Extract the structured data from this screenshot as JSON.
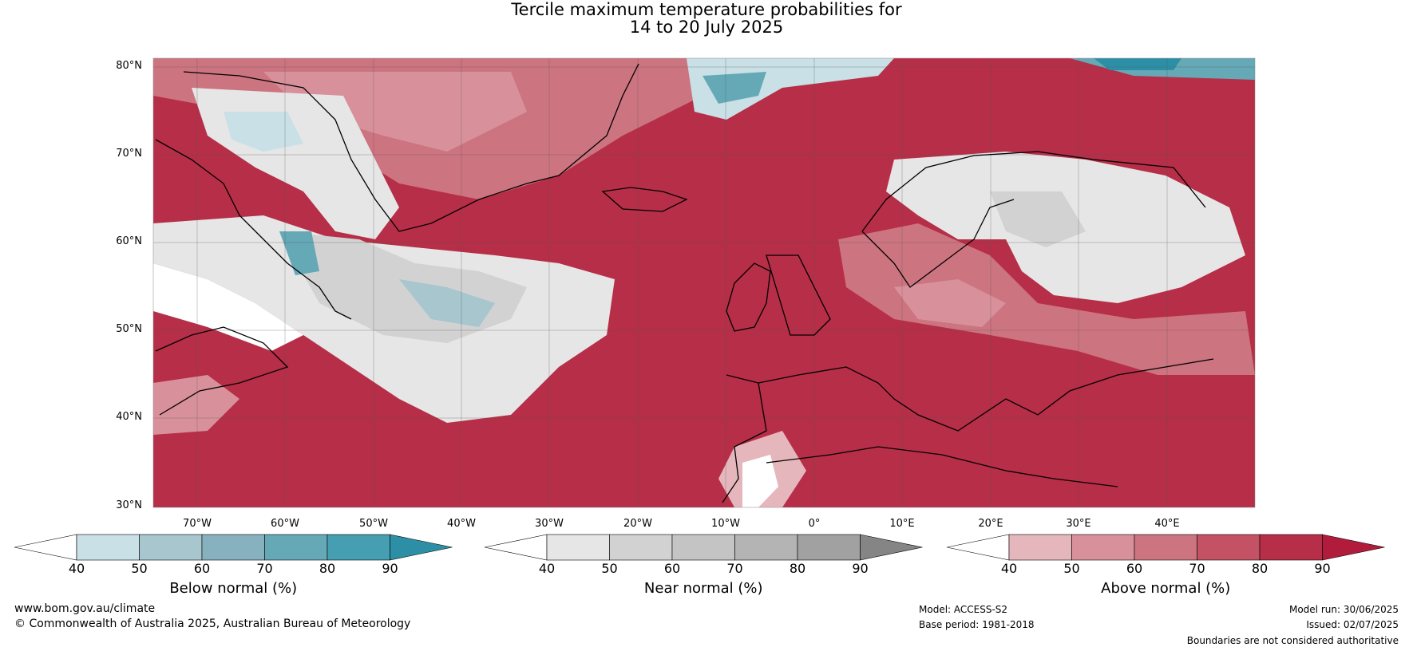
{
  "title": {
    "line1": "Tercile maximum temperature probabilities for",
    "line2": "14 to 20 July 2025"
  },
  "lat_labels": [
    "80°N",
    "70°N",
    "60°N",
    "50°N",
    "40°N",
    "30°N"
  ],
  "lon_labels": [
    "70°W",
    "60°W",
    "50°W",
    "40°W",
    "30°W",
    "20°W",
    "10°W",
    "0°",
    "10°E",
    "20°E",
    "30°E",
    "40°E"
  ],
  "colorbars": [
    {
      "label": "Below normal (%)",
      "ticks": [
        "40",
        "50",
        "60",
        "70",
        "80",
        "90"
      ],
      "colors": [
        "#ffffff",
        "#c9e0e6",
        "#a7c6cd",
        "#88b1c0",
        "#65a9b6",
        "#459eb1",
        "#2c8fa6"
      ]
    },
    {
      "label": "Near normal (%)",
      "ticks": [
        "40",
        "50",
        "60",
        "70",
        "80",
        "90"
      ],
      "colors": [
        "#ffffff",
        "#e6e6e6",
        "#d2d2d2",
        "#c4c4c4",
        "#b4b4b4",
        "#a1a1a1",
        "#858585"
      ]
    },
    {
      "label": "Above normal (%)",
      "ticks": [
        "40",
        "50",
        "60",
        "70",
        "80",
        "90"
      ],
      "colors": [
        "#ffffff",
        "#e5b7bd",
        "#d8919b",
        "#cc7480",
        "#c35265",
        "#b62e47",
        "#b21c3c"
      ]
    }
  ],
  "footer": {
    "website": "www.bom.gov.au/climate",
    "copyright": "© Commonwealth of Australia 2025, Australian Bureau of Meteorology",
    "model": "Model: ACCESS-S2",
    "base_period": "Base period: 1981-2018",
    "model_run": "Model run: 30/06/2025",
    "issued": "Issued: 02/07/2025",
    "disclaimer": "Boundaries are not considered authoritative"
  }
}
